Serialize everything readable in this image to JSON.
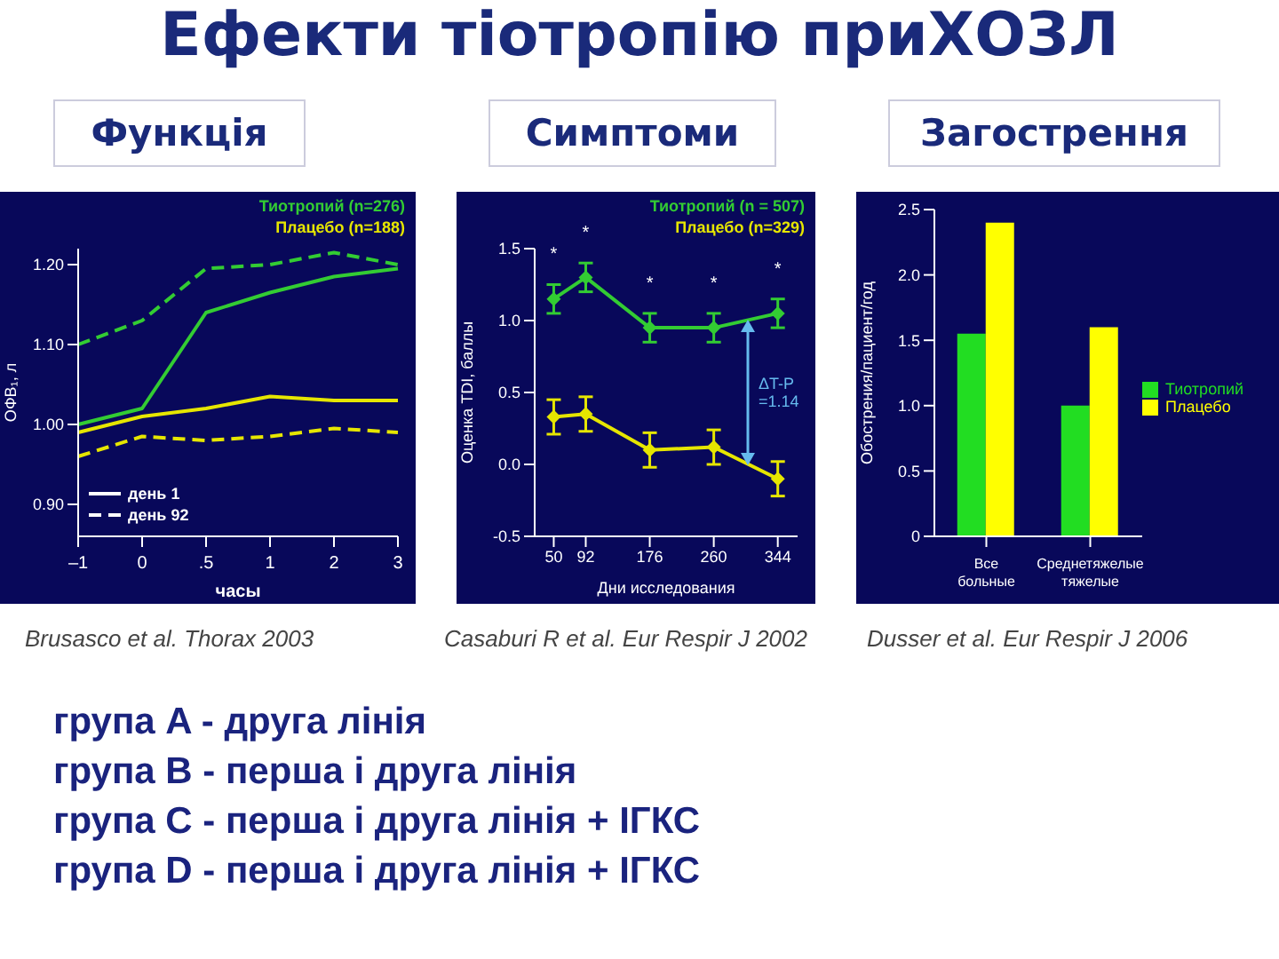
{
  "chart_data": [
    {
      "type": "other",
      "title": "Ефекти тіотропію приХОЗЛ",
      "annotations": [
        "група A - друга лінія",
        "група B - перша і друга лінія",
        "група C - перша і друга лінія + ІГКС",
        "група D - перша і друга лінія + ІГКС"
      ]
    },
    {
      "type": "line",
      "title": "Функція",
      "categories": [
        "–1",
        "0",
        ".5",
        "1",
        "2",
        "3"
      ],
      "xlabel": "часы",
      "ylabel": "ОФВ₁, л",
      "ylim": [
        0.86,
        1.22
      ],
      "yticks": [
        {
          "value": 0.9,
          "label": "0.90"
        },
        {
          "value": 1.0,
          "label": "1.00"
        },
        {
          "value": 1.1,
          "label": "1.10"
        },
        {
          "value": 1.2,
          "label": "1.20"
        }
      ],
      "marker": "none",
      "legend": false,
      "series": [
        {
          "name": "Тиотропий (n=276)",
          "color": "#33cc33",
          "line_style": "solid",
          "values": [
            1.0,
            1.02,
            1.14,
            1.165,
            1.185,
            1.195
          ]
        },
        {
          "color": "#33cc33",
          "line_style": "dashed",
          "values": [
            1.1,
            1.13,
            1.195,
            1.2,
            1.215,
            1.2
          ]
        },
        {
          "name": "Плацебо (n=188)",
          "color": "#e6e600",
          "line_style": "solid",
          "values": [
            0.99,
            1.01,
            1.02,
            1.035,
            1.03,
            1.03
          ]
        },
        {
          "color": "#e6e600",
          "line_style": "dashed",
          "values": [
            0.96,
            0.985,
            0.98,
            0.985,
            0.995,
            0.99
          ]
        }
      ],
      "annotations": [
        "день 1",
        "день 92",
        "Brusasco et al. Thorax 2003"
      ]
    },
    {
      "type": "line",
      "title": "Симптоми",
      "x": [
        50,
        92,
        176,
        260,
        344
      ],
      "xlim": [
        25,
        370
      ],
      "xticks": [
        50,
        92,
        176,
        260,
        344
      ],
      "xlabel": "Дни исследования",
      "ylabel": "Оценка TDI, баллы",
      "ylim": [
        -0.5,
        1.5
      ],
      "yticks": [
        {
          "value": -0.5,
          "label": "-0.5"
        },
        {
          "value": 0,
          "label": "0.0"
        },
        {
          "value": 0.5,
          "label": "0.5"
        },
        {
          "value": 1,
          "label": "1.0"
        },
        {
          "value": 1.5,
          "label": "1.5"
        }
      ],
      "marker": "diamond",
      "legend": false,
      "series": [
        {
          "name": "Тиотропий (n = 507)",
          "color": "#33cc33",
          "values": [
            1.15,
            1.3,
            0.95,
            0.95,
            1.05
          ],
          "errors": [
            0.1,
            0.1,
            0.1,
            0.1,
            0.1
          ]
        },
        {
          "name": "Плацебо (n=329)",
          "color": "#e6e600",
          "values": [
            0.33,
            0.35,
            0.1,
            0.12,
            -0.1
          ],
          "errors": [
            0.12,
            0.12,
            0.12,
            0.12,
            0.12
          ]
        }
      ],
      "annotations": [
        {
          "text": "*",
          "x": 50,
          "y": 1.3
        },
        {
          "text": "*",
          "x": 92,
          "y": 1.45
        },
        {
          "text": "*",
          "x": 176,
          "y": 1.1
        },
        {
          "text": "*",
          "x": 260,
          "y": 1.1
        },
        {
          "text": "*",
          "x": 344,
          "y": 1.2
        },
        "ΔT-P =1.14",
        "Casaburi R et al. Eur Respir J 2002"
      ]
    },
    {
      "type": "bar",
      "title": "Загострення",
      "categories": [
        "Все больные",
        "Среднетяжелые тяжелые"
      ],
      "ylabel": "Обострения/пациент/год",
      "ylim": [
        0,
        2.5
      ],
      "yticks": [
        0,
        0.5,
        {
          "value": 1,
          "label": "1.0"
        },
        {
          "value": 1.5,
          "label": "1.5"
        },
        {
          "value": 2,
          "label": "2.0"
        },
        2.5
      ],
      "legend": "right",
      "series": [
        {
          "name": "Тиотропий",
          "color": "#22dd22",
          "values": [
            1.55,
            1.0
          ]
        },
        {
          "name": "Плацебо",
          "color": "#ffff00",
          "values": [
            2.4,
            1.6
          ]
        }
      ],
      "annotations": [
        "Dusser et al. Eur Respir J 2006"
      ]
    }
  ]
}
